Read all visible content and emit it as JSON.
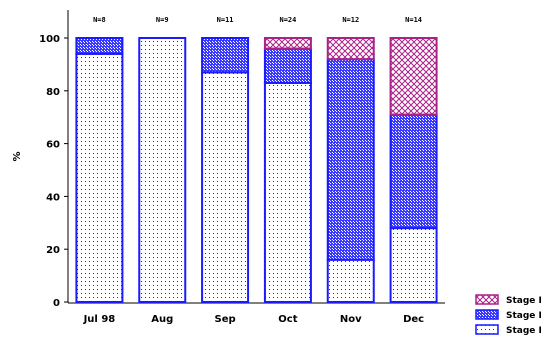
{
  "chart_data": {
    "type": "bar",
    "stacked": true,
    "ylabel": "%",
    "xlabel": "",
    "ylim": [
      0,
      100
    ],
    "yticks": [
      0,
      20,
      40,
      60,
      80,
      100
    ],
    "categories": [
      "Jul 98",
      "Aug",
      "Sep",
      "Oct",
      "Nov",
      "Dec"
    ],
    "n_labels": [
      "N=8",
      "N=9",
      "N=11",
      "N=24",
      "N=12",
      "N=14"
    ],
    "series": [
      {
        "name": "Stage I",
        "pattern": "dots",
        "color": "#1a1aff",
        "values": [
          94,
          100,
          87,
          83,
          16,
          28
        ]
      },
      {
        "name": "Stage I",
        "pattern": "crosshatch",
        "color": "#1a1aff",
        "values": [
          6,
          0,
          13,
          13,
          76,
          43
        ]
      },
      {
        "name": "Stage I",
        "pattern": "diamond",
        "color": "#aa2288",
        "values": [
          0,
          0,
          0,
          4,
          8,
          29
        ]
      }
    ],
    "legend_position": "bottom-right",
    "grid": false
  }
}
